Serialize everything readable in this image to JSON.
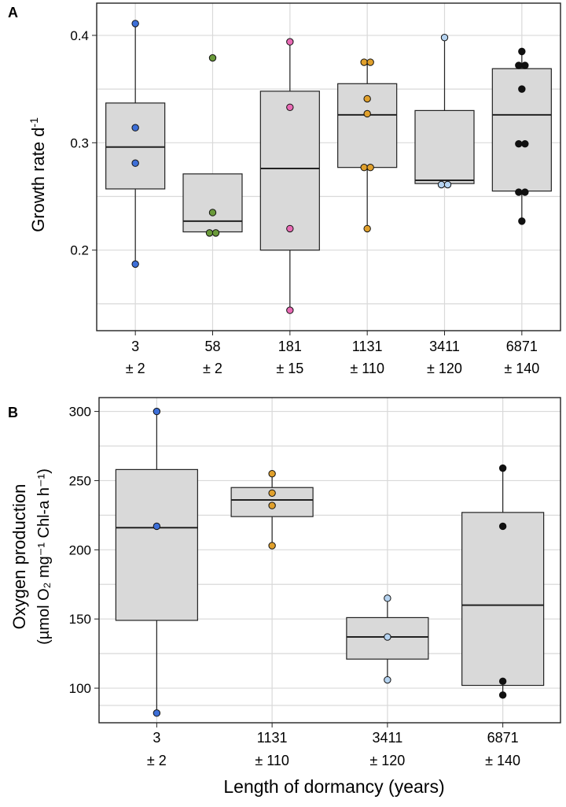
{
  "figure": {
    "xlabel": "Length of dormancy (years)"
  },
  "colors": {
    "box_fill": "#d9d9d9",
    "grid": "#d9d9d9",
    "axis": "#222222"
  },
  "chart_data": [
    {
      "panel": "A",
      "type": "box",
      "ylabel_main": "Growth rate d",
      "ylabel_sup": "-1",
      "ylim": [
        0.125,
        0.43
      ],
      "yticks": [
        0.2,
        0.3,
        0.4
      ],
      "ytick_labels": [
        "0.2",
        "0.3",
        "0.4"
      ],
      "gridlines": [
        0.15,
        0.2,
        0.25,
        0.3,
        0.35,
        0.4
      ],
      "categories": [
        {
          "line1": "3",
          "line2": "± 2",
          "color": "#3d6fd8",
          "box": {
            "min": 0.187,
            "q1": 0.257,
            "median": 0.296,
            "q3": 0.337,
            "max": 0.411
          },
          "points": [
            0.411,
            0.314,
            0.281,
            0.187
          ]
        },
        {
          "line1": "58",
          "line2": "± 2",
          "color": "#6a9a3a",
          "box": {
            "min": 0.216,
            "q1": 0.217,
            "median": 0.227,
            "q3": 0.271,
            "max": 0.271
          },
          "points": [
            0.379,
            0.235,
            0.216,
            0.216
          ]
        },
        {
          "line1": "181",
          "line2": "± 15",
          "color": "#e86ab4",
          "box": {
            "min": 0.144,
            "q1": 0.2,
            "median": 0.276,
            "q3": 0.348,
            "max": 0.394
          },
          "points": [
            0.394,
            0.333,
            0.22,
            0.144
          ]
        },
        {
          "line1": "1131",
          "line2": "± 110",
          "color": "#e0a02c",
          "box": {
            "min": 0.22,
            "q1": 0.277,
            "median": 0.326,
            "q3": 0.355,
            "max": 0.375
          },
          "points": [
            0.375,
            0.375,
            0.341,
            0.327,
            0.277,
            0.277,
            0.22
          ]
        },
        {
          "line1": "3411",
          "line2": "± 120",
          "color": "#b5d3f0",
          "box": {
            "min": 0.261,
            "q1": 0.262,
            "median": 0.265,
            "q3": 0.33,
            "max": 0.398
          },
          "points": [
            0.398,
            0.261,
            0.261
          ]
        },
        {
          "line1": "6871",
          "line2": "± 140",
          "color": "#111111",
          "box": {
            "min": 0.227,
            "q1": 0.255,
            "median": 0.326,
            "q3": 0.369,
            "max": 0.385
          },
          "points": [
            0.385,
            0.372,
            0.372,
            0.35,
            0.299,
            0.299,
            0.254,
            0.254,
            0.227
          ]
        }
      ]
    },
    {
      "panel": "B",
      "type": "box",
      "ylabel_line1": "Oxygen production",
      "ylabel_line2": "(µmol O₂ mg⁻¹ Chl-a h⁻¹)",
      "ylim": [
        75,
        310
      ],
      "yticks": [
        100,
        150,
        200,
        250,
        300
      ],
      "ytick_labels": [
        "100",
        "150",
        "200",
        "250",
        "300"
      ],
      "gridlines": [
        87.5,
        100,
        125,
        150,
        175,
        200,
        225,
        250,
        275,
        300
      ],
      "categories": [
        {
          "line1": "3",
          "line2": "± 2",
          "color": "#3d6fd8",
          "box": {
            "min": 82,
            "q1": 149,
            "median": 216,
            "q3": 258,
            "max": 300
          },
          "points": [
            300,
            217,
            82
          ]
        },
        {
          "line1": "1131",
          "line2": "± 110",
          "color": "#e0a02c",
          "box": {
            "min": 203,
            "q1": 224,
            "median": 236,
            "q3": 245,
            "max": 255
          },
          "points": [
            255,
            241,
            232,
            203
          ]
        },
        {
          "line1": "3411",
          "line2": "± 120",
          "color": "#b5d3f0",
          "box": {
            "min": 106,
            "q1": 121,
            "median": 137,
            "q3": 151,
            "max": 165
          },
          "points": [
            165,
            137,
            106
          ]
        },
        {
          "line1": "6871",
          "line2": "± 140",
          "color": "#111111",
          "box": {
            "min": 95,
            "q1": 102,
            "median": 160,
            "q3": 227,
            "max": 259
          },
          "points": [
            259,
            217,
            105,
            95
          ]
        }
      ]
    }
  ]
}
